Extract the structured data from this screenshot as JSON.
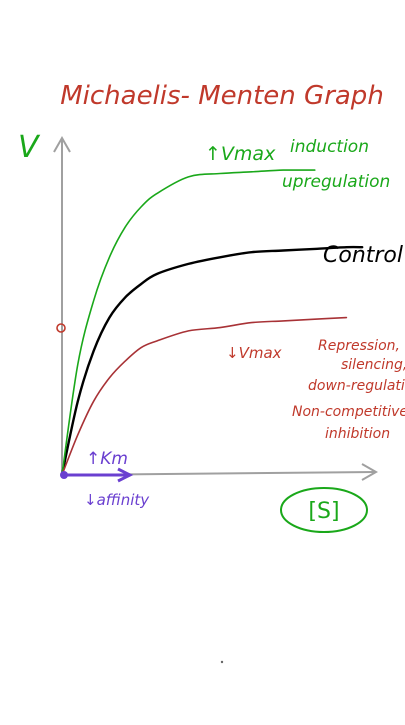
{
  "chart_data": {
    "type": "line",
    "title": "Michaelis- Menten Graph",
    "ylabel": "V",
    "xlabel": "[S]",
    "ylim": [
      0,
      1
    ],
    "xlim": [
      0,
      1
    ],
    "grid": false,
    "legend": "inline labels at curve ends",
    "series": [
      {
        "name": "Control",
        "color": "#000000",
        "x": [
          0,
          0.05,
          0.1,
          0.15,
          0.2,
          0.25,
          0.3,
          0.4,
          0.5,
          0.6,
          0.7,
          0.8,
          0.9,
          0.95
        ],
        "y": [
          0,
          0.22,
          0.37,
          0.47,
          0.53,
          0.57,
          0.6,
          0.63,
          0.65,
          0.665,
          0.67,
          0.675,
          0.68,
          0.68
        ]
      },
      {
        "name": "induction upregulation",
        "color": "#1aa81a",
        "x": [
          0,
          0.05,
          0.1,
          0.15,
          0.2,
          0.25,
          0.3,
          0.4,
          0.5,
          0.6,
          0.7,
          0.8
        ],
        "y": [
          0,
          0.33,
          0.52,
          0.65,
          0.74,
          0.8,
          0.84,
          0.89,
          0.9,
          0.905,
          0.91,
          0.91
        ]
      },
      {
        "name": "Repression, silencing, down-regulation Non-competitive inhibition",
        "color": "#a83236",
        "x": [
          0,
          0.05,
          0.1,
          0.15,
          0.2,
          0.25,
          0.3,
          0.4,
          0.5,
          0.6,
          0.7,
          0.8,
          0.9
        ],
        "y": [
          0,
          0.12,
          0.22,
          0.29,
          0.34,
          0.38,
          0.4,
          0.43,
          0.44,
          0.455,
          0.46,
          0.465,
          0.47
        ]
      }
    ],
    "annotations": {
      "vmax_up": "↑Vmax",
      "vmax_down": "↓Vmax",
      "km_up": "↑Km",
      "affinity_down": "↓affinity",
      "control_label": "Control",
      "induction_label": "induction",
      "upregulation_label": "upregulation",
      "repression_lines": [
        "Repression,",
        "silencing,",
        "down-regulatio",
        "Non-competitive",
        "inhibition"
      ]
    },
    "colors": {
      "axis": "#a0a0a0",
      "title": "#c0392b",
      "vlabel": "#1aa81a",
      "km": "#6a3fd0",
      "s_circle": "#1aa81a"
    }
  }
}
